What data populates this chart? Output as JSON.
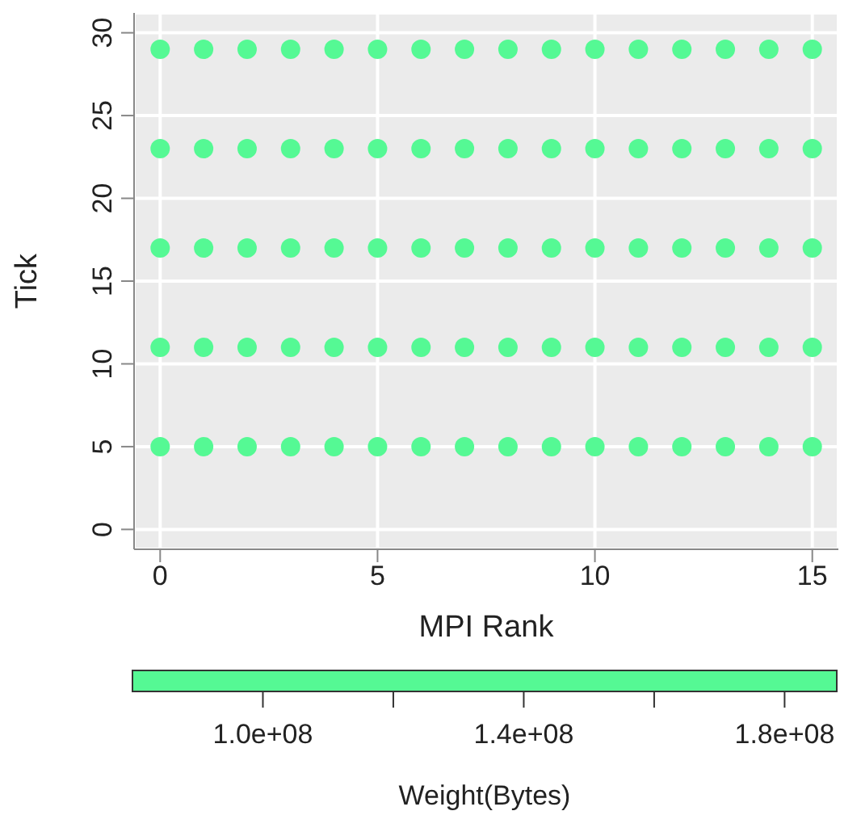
{
  "chart_data": {
    "type": "scatter",
    "xlabel": "MPI Rank",
    "ylabel": "Tick",
    "clabel": "Weight(Bytes)",
    "x": [
      0,
      1,
      2,
      3,
      4,
      5,
      6,
      7,
      8,
      9,
      10,
      11,
      12,
      13,
      14,
      15,
      0,
      1,
      2,
      3,
      4,
      5,
      6,
      7,
      8,
      9,
      10,
      11,
      12,
      13,
      14,
      15,
      0,
      1,
      2,
      3,
      4,
      5,
      6,
      7,
      8,
      9,
      10,
      11,
      12,
      13,
      14,
      15,
      0,
      1,
      2,
      3,
      4,
      5,
      6,
      7,
      8,
      9,
      10,
      11,
      12,
      13,
      14,
      15,
      0,
      1,
      2,
      3,
      4,
      5,
      6,
      7,
      8,
      9,
      10,
      11,
      12,
      13,
      14,
      15
    ],
    "values": [
      5,
      5,
      5,
      5,
      5,
      5,
      5,
      5,
      5,
      5,
      5,
      5,
      5,
      5,
      5,
      5,
      11,
      11,
      11,
      11,
      11,
      11,
      11,
      11,
      11,
      11,
      11,
      11,
      11,
      11,
      11,
      11,
      17,
      17,
      17,
      17,
      17,
      17,
      17,
      17,
      17,
      17,
      17,
      17,
      17,
      17,
      17,
      17,
      23,
      23,
      23,
      23,
      23,
      23,
      23,
      23,
      23,
      23,
      23,
      23,
      23,
      23,
      23,
      23,
      29,
      29,
      29,
      29,
      29,
      29,
      29,
      29,
      29,
      29,
      29,
      29,
      29,
      29,
      29,
      29
    ],
    "color": "#55f994",
    "marker": "circle",
    "xlim": [
      -0.6,
      15.6
    ],
    "xticks": [
      0,
      5,
      10,
      15
    ],
    "ylim": [
      -1.2,
      31.2
    ],
    "yticks": [
      0,
      5,
      10,
      15,
      20,
      25,
      30
    ],
    "clim": [
      80000000,
      188000000
    ],
    "cticks": [
      {
        "value": 100000000,
        "label": "1.0e+08"
      },
      {
        "value": 120000000,
        "label": null
      },
      {
        "value": 140000000,
        "label": "1.4e+08"
      },
      {
        "value": 160000000,
        "label": null
      },
      {
        "value": 180000000,
        "label": "1.8e+08"
      }
    ],
    "grid": true
  }
}
